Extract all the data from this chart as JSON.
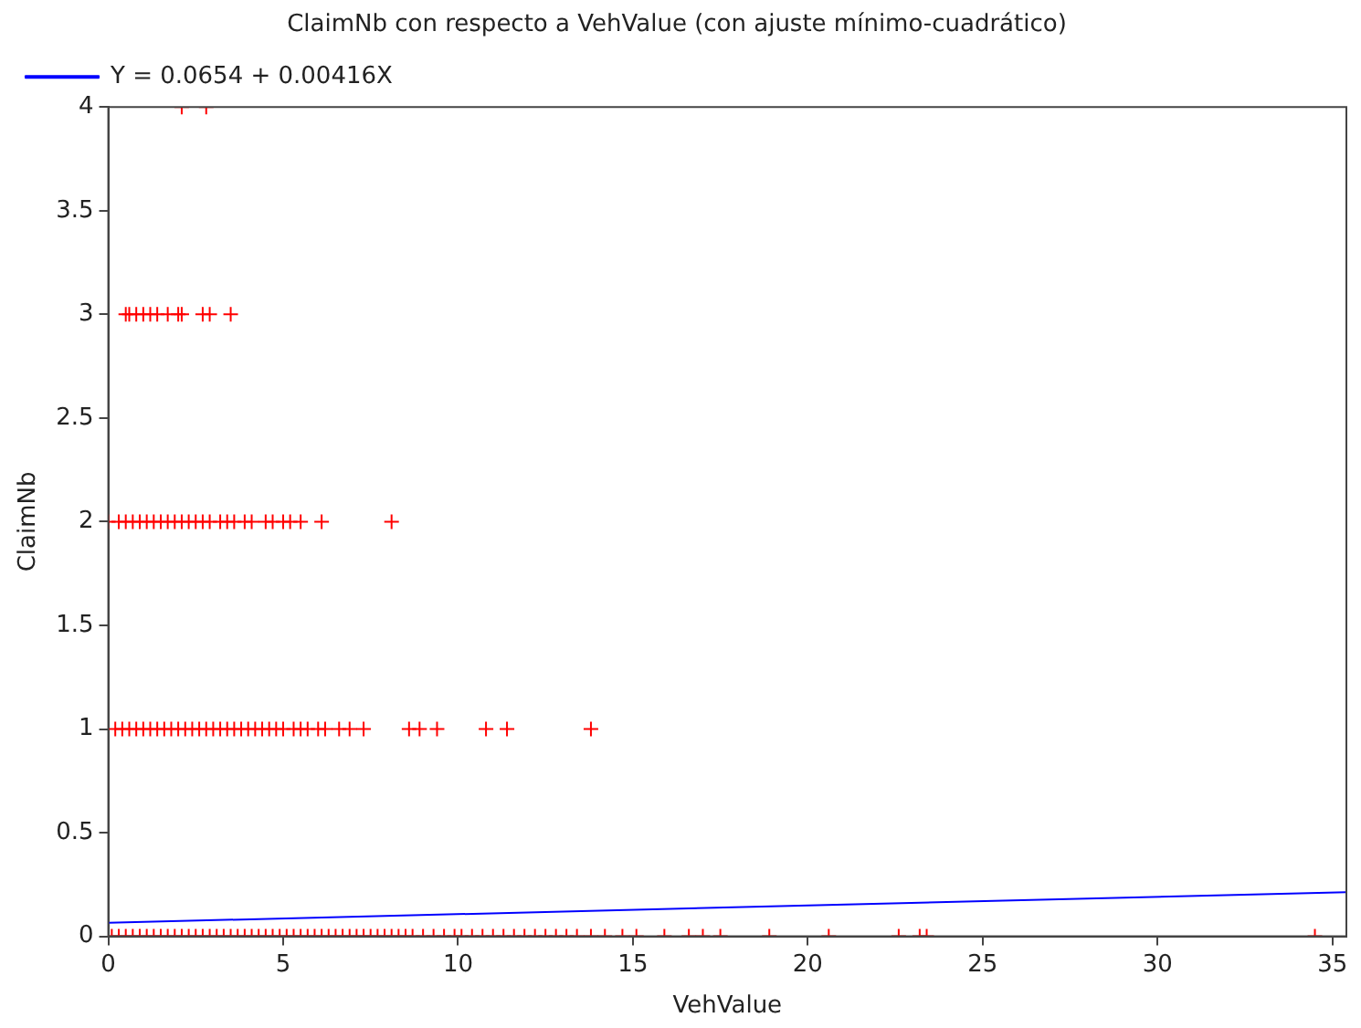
{
  "chart_data": {
    "type": "scatter",
    "title": "ClaimNb con respecto a VehValue (con ajuste mínimo-cuadrático)",
    "xlabel": "VehValue",
    "ylabel": "ClaimNb",
    "xlim": [
      0,
      35.4
    ],
    "xticks": [
      0,
      5,
      10,
      15,
      20,
      25,
      30,
      35
    ],
    "ylim": [
      0,
      4
    ],
    "yticks": [
      0,
      0.5,
      1,
      1.5,
      2,
      2.5,
      3,
      3.5,
      4
    ],
    "grid": false,
    "legend": "top left",
    "series": [
      {
        "marker": "cross",
        "color": "#ff0000",
        "x": [
          0.1,
          0.3,
          0.5,
          0.7,
          0.9,
          1.1,
          1.3,
          1.5,
          1.7,
          1.9,
          2.1,
          2.3,
          2.5,
          2.7,
          2.9,
          3.1,
          3.3,
          3.5,
          3.7,
          3.9,
          4.1,
          4.3,
          4.5,
          4.7,
          4.9,
          5.1,
          5.3,
          5.5,
          5.7,
          5.9,
          6.1,
          6.3,
          6.5,
          6.7,
          6.9,
          7.1,
          7.3,
          7.5,
          7.7,
          7.9,
          8.1,
          8.3,
          8.5,
          8.7,
          9.0,
          9.3,
          9.6,
          9.9,
          10.1,
          10.4,
          10.7,
          11.0,
          11.3,
          11.6,
          11.9,
          12.2,
          12.5,
          12.8,
          13.1,
          13.4,
          13.8,
          14.2,
          14.7,
          15.1,
          15.9,
          16.6,
          17.0,
          17.5,
          18.9,
          20.6,
          22.6,
          23.2,
          23.4,
          34.5,
          0.2,
          0.4,
          0.6,
          0.8,
          1.0,
          1.2,
          1.4,
          1.6,
          1.8,
          2.0,
          2.2,
          2.4,
          2.6,
          2.8,
          3.0,
          3.2,
          3.4,
          3.6,
          3.8,
          4.0,
          4.2,
          4.4,
          4.6,
          4.8,
          5.0,
          5.3,
          5.5,
          5.7,
          6.0,
          6.2,
          6.6,
          6.9,
          7.3,
          8.6,
          8.9,
          9.4,
          10.8,
          11.4,
          13.8,
          0.0,
          0.3,
          0.5,
          0.7,
          0.9,
          1.1,
          1.3,
          1.5,
          1.7,
          1.9,
          2.1,
          2.3,
          2.5,
          2.7,
          2.9,
          3.2,
          3.4,
          3.6,
          3.9,
          4.1,
          4.5,
          4.7,
          5.0,
          5.2,
          5.5,
          6.1,
          8.1,
          0.5,
          0.6,
          0.8,
          1.0,
          1.2,
          1.4,
          1.7,
          2.0,
          2.1,
          2.7,
          2.9,
          3.5,
          2.1,
          2.8
        ],
        "values": [
          0,
          0,
          0,
          0,
          0,
          0,
          0,
          0,
          0,
          0,
          0,
          0,
          0,
          0,
          0,
          0,
          0,
          0,
          0,
          0,
          0,
          0,
          0,
          0,
          0,
          0,
          0,
          0,
          0,
          0,
          0,
          0,
          0,
          0,
          0,
          0,
          0,
          0,
          0,
          0,
          0,
          0,
          0,
          0,
          0,
          0,
          0,
          0,
          0,
          0,
          0,
          0,
          0,
          0,
          0,
          0,
          0,
          0,
          0,
          0,
          0,
          0,
          0,
          0,
          0,
          0,
          0,
          0,
          0,
          0,
          0,
          0,
          0,
          0,
          1,
          1,
          1,
          1,
          1,
          1,
          1,
          1,
          1,
          1,
          1,
          1,
          1,
          1,
          1,
          1,
          1,
          1,
          1,
          1,
          1,
          1,
          1,
          1,
          1,
          1,
          1,
          1,
          1,
          1,
          1,
          1,
          1,
          1,
          1,
          1,
          1,
          1,
          1,
          2,
          2,
          2,
          2,
          2,
          2,
          2,
          2,
          2,
          2,
          2,
          2,
          2,
          2,
          2,
          2,
          2,
          2,
          2,
          2,
          2,
          2,
          2,
          2,
          2,
          2,
          2,
          3,
          3,
          3,
          3,
          3,
          3,
          3,
          3,
          3,
          3,
          3,
          3,
          4,
          4
        ]
      },
      {
        "type": "line",
        "marker": "none",
        "name": "Y = 0.0654 + 0.00416X",
        "color": "#0000ff",
        "x": [
          0,
          35.4
        ],
        "values": [
          0.0654,
          0.2127
        ]
      }
    ]
  }
}
